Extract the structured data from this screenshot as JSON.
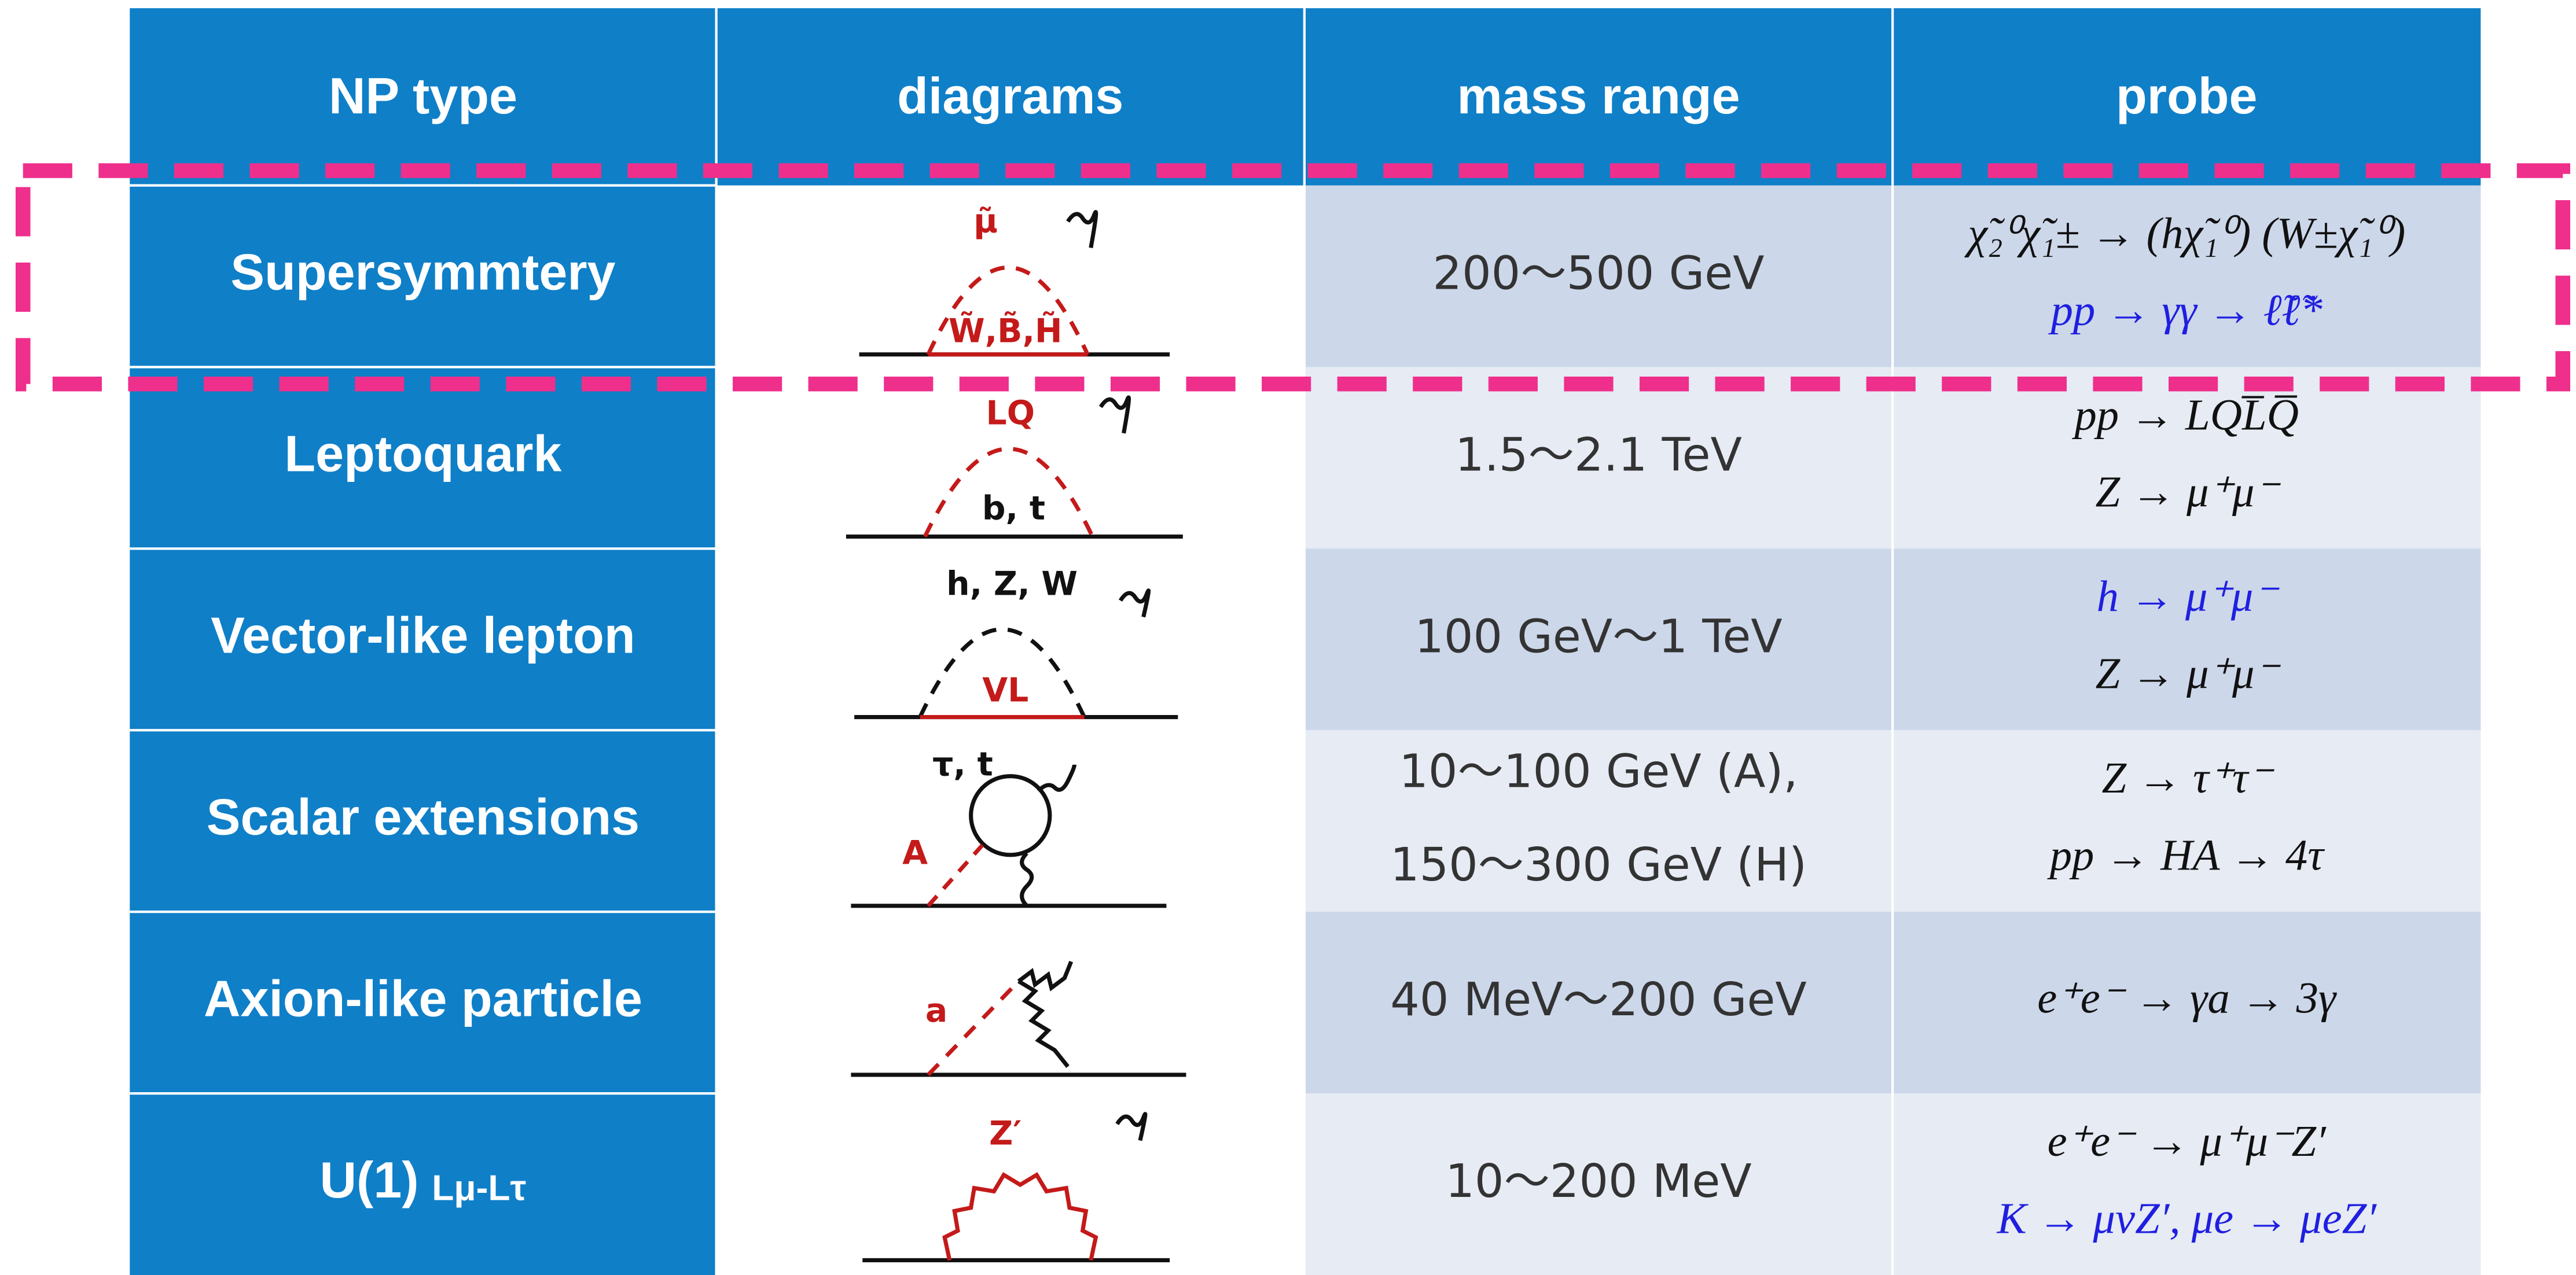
{
  "table": {
    "header": [
      "NP type",
      "diagrams",
      "mass range",
      "probe"
    ],
    "rows": [
      {
        "np_type": "Supersymmtery",
        "diagram_labels": [
          "μ̃",
          "W̃,B̃,H̃"
        ],
        "mass_range": [
          "200～500 GeV"
        ],
        "probe": [
          {
            "text": "χ̃₂⁰χ̃₁± → (hχ̃₁⁰) (W±χ̃₁⁰)",
            "color": "#111111"
          },
          {
            "text": "pp → γγ → ℓ̃ℓ̃*",
            "color": "#1f1fe0"
          }
        ]
      },
      {
        "np_type": "Leptoquark",
        "diagram_labels": [
          "LQ",
          "b, t"
        ],
        "mass_range": [
          "1.5～2.1 TeV"
        ],
        "probe": [
          {
            "text": "pp → LQL̅Q̅",
            "color": "#111111"
          },
          {
            "text": "Z → μ⁺μ⁻",
            "color": "#111111"
          }
        ]
      },
      {
        "np_type": "Vector-like lepton",
        "diagram_labels": [
          "h, Z, W",
          "VL"
        ],
        "mass_range": [
          "100 GeV～1 TeV"
        ],
        "probe": [
          {
            "text": "h → μ⁺μ⁻",
            "color": "#1f1fe0"
          },
          {
            "text": "Z → μ⁺μ⁻",
            "color": "#111111"
          }
        ]
      },
      {
        "np_type": "Scalar extensions",
        "diagram_labels": [
          "τ, t",
          "A"
        ],
        "mass_range": [
          "10～100 GeV (A),",
          "150～300 GeV (H)"
        ],
        "probe": [
          {
            "text": "Z → τ⁺τ⁻",
            "color": "#111111"
          },
          {
            "text": "pp → HA → 4τ",
            "color": "#111111"
          }
        ]
      },
      {
        "np_type": "Axion-like particle",
        "diagram_labels": [
          "a"
        ],
        "mass_range": [
          "40 MeV～200 GeV"
        ],
        "probe": [
          {
            "text": "e⁺e⁻ → γa → 3γ",
            "color": "#111111"
          }
        ]
      },
      {
        "np_type": "U(1)",
        "np_type_sub": "Lμ-Lτ",
        "diagram_labels": [
          "Z′"
        ],
        "mass_range": [
          "10～200 MeV"
        ],
        "probe": [
          {
            "text": "e⁺e⁻ → μ⁺μ⁻Z′",
            "color": "#111111"
          },
          {
            "text": "K → μνZ′, μe → μeZ′",
            "color": "#1f1fe0"
          }
        ]
      }
    ]
  }
}
